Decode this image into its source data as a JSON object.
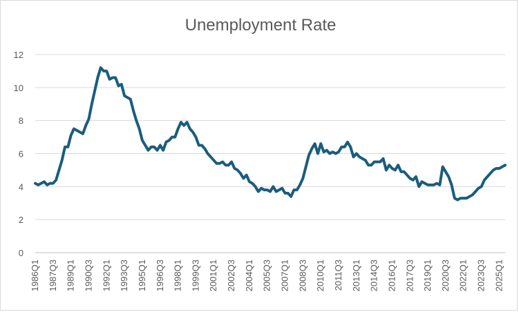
{
  "chart_data": {
    "type": "line",
    "title": "Unemployment Rate",
    "xlabel": "",
    "ylabel": "",
    "ylim": [
      0,
      12
    ],
    "yticks": [
      0,
      2,
      4,
      6,
      8,
      10,
      12
    ],
    "grid": "horizontal",
    "legend": "none",
    "colors": {
      "line": "#1b5c7e",
      "grid": "#d9d9d9",
      "axis": "#bfbfbf",
      "text": "#595959"
    },
    "x_tick_labels": [
      "1986Q1",
      "1987Q3",
      "1989Q1",
      "1990Q3",
      "1992Q1",
      "1993Q3",
      "1995Q1",
      "1996Q3",
      "1998Q1",
      "1999Q3",
      "2001Q1",
      "2002Q3",
      "2004Q1",
      "2005Q3",
      "2007Q1",
      "2008Q3",
      "2010Q1",
      "2011Q3",
      "2013Q1",
      "2014Q3",
      "2016Q1",
      "2017Q3",
      "2019Q1",
      "2020Q3",
      "2022Q1",
      "2023Q3",
      "2025Q1"
    ],
    "series": [
      {
        "start": "1986Q1",
        "frequency": "quarterly",
        "values": [
          4.2,
          4.1,
          4.2,
          4.3,
          4.1,
          4.2,
          4.2,
          4.4,
          5.0,
          5.6,
          6.4,
          6.4,
          7.1,
          7.5,
          7.4,
          7.3,
          7.2,
          7.7,
          8.1,
          9.0,
          9.8,
          10.6,
          11.2,
          11.0,
          11.0,
          10.5,
          10.6,
          10.6,
          10.1,
          10.2,
          9.5,
          9.4,
          9.3,
          8.6,
          8.0,
          7.5,
          6.8,
          6.5,
          6.2,
          6.4,
          6.4,
          6.2,
          6.5,
          6.2,
          6.7,
          6.8,
          7.0,
          7.0,
          7.5,
          7.9,
          7.7,
          7.9,
          7.5,
          7.3,
          7.0,
          6.5,
          6.5,
          6.3,
          6.0,
          5.8,
          5.6,
          5.4,
          5.4,
          5.5,
          5.3,
          5.3,
          5.5,
          5.1,
          5.0,
          4.8,
          4.5,
          4.7,
          4.3,
          4.2,
          4.0,
          3.7,
          3.9,
          3.8,
          3.8,
          3.7,
          4.0,
          3.7,
          3.8,
          3.9,
          3.6,
          3.6,
          3.4,
          3.8,
          3.8,
          4.1,
          4.5,
          5.2,
          5.9,
          6.3,
          6.6,
          6.0,
          6.6,
          6.1,
          6.2,
          6.0,
          6.1,
          6.0,
          6.1,
          6.4,
          6.4,
          6.7,
          6.4,
          5.8,
          6.0,
          5.8,
          5.7,
          5.6,
          5.3,
          5.3,
          5.5,
          5.5,
          5.5,
          5.7,
          5.0,
          5.3,
          5.1,
          5.0,
          5.3,
          4.9,
          4.9,
          4.7,
          4.5,
          4.4,
          4.6,
          4.0,
          4.3,
          4.2,
          4.1,
          4.1,
          4.1,
          4.2,
          4.1,
          5.2,
          4.9,
          4.6,
          4.1,
          3.3,
          3.2,
          3.3,
          3.3,
          3.3,
          3.4,
          3.5,
          3.7,
          3.9,
          4.0,
          4.4,
          4.6,
          4.8,
          5.0,
          5.1,
          5.1,
          5.2,
          5.3
        ]
      }
    ]
  }
}
